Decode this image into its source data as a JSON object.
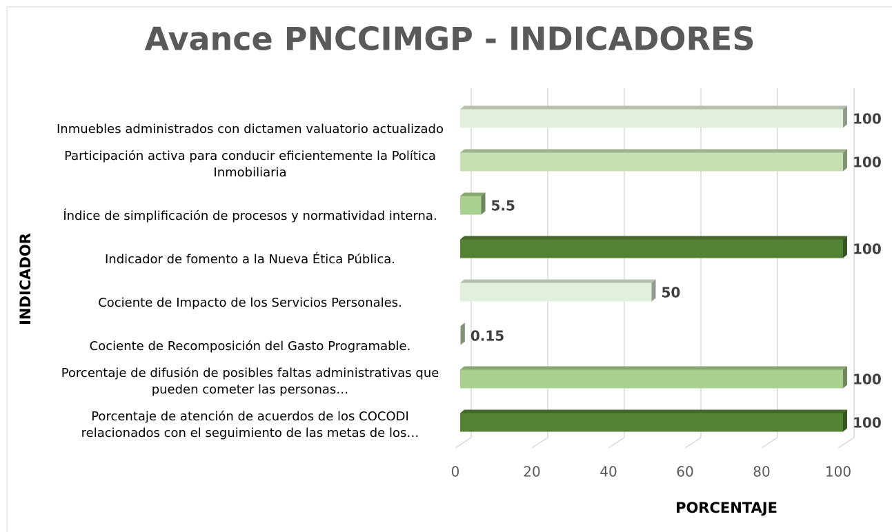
{
  "chart_data": {
    "type": "bar3d_horizontal",
    "title": "Avance PNCCIMGP - INDICADORES",
    "x_label": "PORCENTAJE",
    "y_label": "INDICADOR",
    "categories": [
      "Inmuebles administrados con dictamen valuatorio actualizado",
      "Participación activa para conducir eficientemente la Política Inmobiliaria",
      "Índice de simplificación de procesos y normatividad interna.",
      "Indicador de fomento a la Nueva Ética Pública.",
      "Cociente de Impacto de los Servicios Personales.",
      "Cociente de Recomposición del Gasto Programable.",
      "Porcentaje de  difusión de posibles faltas administrativas que pueden cometer las personas…",
      "Porcentaje de atención de acuerdos de los COCODI relacionados con el seguimiento de las metas de los…"
    ],
    "values": [
      100,
      100,
      5.5,
      100,
      50,
      0.15,
      100,
      100
    ],
    "colors": [
      "#e2efda",
      "#c6e0b4",
      "#a9d08e",
      "#548235",
      "#e2efda",
      "#c6e0b4",
      "#a9d08e",
      "#548235"
    ],
    "xlim": [
      0,
      100
    ],
    "xticks": [
      0,
      20,
      40,
      60,
      80,
      100
    ],
    "grid": true
  }
}
